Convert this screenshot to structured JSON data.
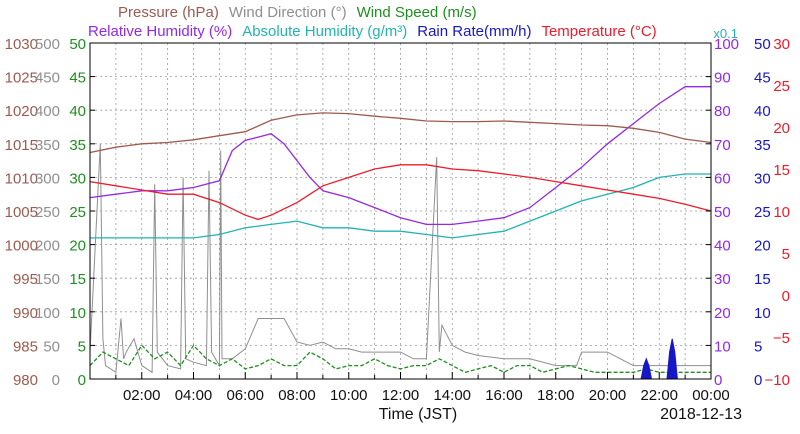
{
  "chart_data": {
    "type": "line",
    "legend": {
      "row1": [
        {
          "text": "Pressure (hPa)",
          "color": "#9d5a4f"
        },
        {
          "text": "Wind Direction (°)",
          "color": "#8f8f8f"
        },
        {
          "text": "Wind Speed (m/s)",
          "color": "#1f8f1f"
        }
      ],
      "row2": [
        {
          "text": "Relative Humidity (%)",
          "color": "#9428e8"
        },
        {
          "text": "Absolute Humidity (g/m³)",
          "color": "#22b3b3"
        },
        {
          "text": "Rain Rate(mm/h)",
          "color": "#1717c8"
        },
        {
          "text": "Temperature (°C)",
          "color": "#ee1c2a"
        }
      ],
      "absolute_humidity_scale": "x0.1"
    },
    "xlabel": "Time (JST)",
    "date_label": "2018-12-13",
    "x_ticks": [
      "02:00",
      "04:00",
      "06:00",
      "08:00",
      "10:00",
      "12:00",
      "14:00",
      "16:00",
      "18:00",
      "20:00",
      "22:00",
      "00:00"
    ],
    "xlim": [
      0,
      24
    ],
    "axes": {
      "pressure": {
        "ticks": [
          "1030",
          "1025",
          "1020",
          "1015",
          "1010",
          "1005",
          "1000",
          "995",
          "990",
          "985",
          "980"
        ],
        "range": [
          980,
          1030
        ],
        "color": "#9d5a4f"
      },
      "wind_direction": {
        "ticks": [
          "500",
          "450",
          "400",
          "350",
          "300",
          "250",
          "200",
          "150",
          "100",
          "50",
          "0"
        ],
        "range": [
          0,
          500
        ],
        "color": "#8f8f8f"
      },
      "wind_speed": {
        "ticks": [
          "50",
          "45",
          "40",
          "35",
          "30",
          "25",
          "20",
          "15",
          "10",
          "5",
          "0"
        ],
        "range": [
          0,
          50
        ],
        "color": "#1f8f1f"
      },
      "relative_humidity": {
        "ticks": [
          "100",
          "90",
          "80",
          "70",
          "60",
          "50",
          "40",
          "30",
          "20",
          "10",
          "0"
        ],
        "range": [
          0,
          100
        ],
        "color": "#9428e8"
      },
      "rain_rate": {
        "ticks": [
          "50",
          "45",
          "40",
          "35",
          "30",
          "25",
          "20",
          "15",
          "10",
          "5",
          "0"
        ],
        "range": [
          0,
          50
        ],
        "color": "#1717c8"
      },
      "temperature": {
        "ticks": [
          "30",
          "25",
          "20",
          "15",
          "10",
          "5",
          "0",
          "−5",
          "−10"
        ],
        "range": [
          -10,
          30
        ],
        "color": "#ee1c2a"
      }
    },
    "series": [
      {
        "name": "Pressure (hPa)",
        "axis": "pressure",
        "color": "#9d5a4f",
        "x": [
          0,
          1,
          2,
          3,
          4,
          5,
          6,
          7,
          8,
          9,
          10,
          11,
          12,
          13,
          14,
          15,
          16,
          17,
          18,
          19,
          20,
          21,
          22,
          23,
          24
        ],
        "y": [
          1013.7,
          1014.5,
          1015,
          1015.2,
          1015.6,
          1016.2,
          1016.8,
          1018.5,
          1019.3,
          1019.6,
          1019.5,
          1019.1,
          1018.8,
          1018.4,
          1018.3,
          1018.3,
          1018.4,
          1018.2,
          1018,
          1017.8,
          1017.7,
          1017.3,
          1016.7,
          1015.7,
          1015.2
        ]
      },
      {
        "name": "Relative Humidity (%)",
        "axis": "relative_humidity",
        "color": "#9428e8",
        "x": [
          0,
          1,
          2,
          3,
          4,
          4.5,
          5,
          5.5,
          6,
          6.5,
          7,
          7.5,
          8,
          8.5,
          9,
          10,
          11,
          12,
          13,
          14,
          15,
          16,
          17,
          18,
          19,
          20,
          21,
          22,
          23,
          24
        ],
        "y": [
          54,
          55,
          56,
          56,
          57,
          58,
          59,
          68,
          71,
          72,
          73,
          70,
          65,
          60,
          56,
          54,
          51,
          48,
          46,
          46,
          47,
          48,
          51,
          57,
          63,
          70,
          76,
          82,
          87,
          87
        ]
      },
      {
        "name": "Absolute Humidity (g/m³)",
        "axis": "relative_humidity",
        "color": "#22b3b3",
        "x": [
          0,
          1,
          2,
          3,
          4,
          5,
          6,
          7,
          8,
          9,
          10,
          11,
          12,
          13,
          14,
          15,
          16,
          17,
          18,
          19,
          20,
          21,
          22,
          23,
          24
        ],
        "y": [
          42,
          42,
          42,
          42,
          42,
          43,
          45,
          46,
          47,
          45,
          45,
          44,
          44,
          43,
          42,
          43,
          44,
          47,
          50,
          53,
          55,
          57,
          60,
          61,
          61
        ]
      },
      {
        "name": "Temperature (°C)",
        "axis": "temperature",
        "color": "#ee1c2a",
        "x": [
          0,
          1,
          2,
          3,
          4,
          5,
          6,
          6.5,
          7,
          8,
          9,
          10,
          11,
          12,
          13,
          14,
          15,
          16,
          17,
          18,
          19,
          20,
          21,
          22,
          23,
          24
        ],
        "y": [
          13.5,
          13,
          12.5,
          12,
          12,
          11,
          9.5,
          9,
          9.5,
          11,
          13,
          14,
          15,
          15.5,
          15.5,
          15,
          14.8,
          14.4,
          14,
          13.5,
          13,
          12.5,
          12,
          11.5,
          10.8,
          10
        ]
      },
      {
        "name": "Wind Direction (°)",
        "axis": "wind_direction",
        "color": "#8f8f8f",
        "x": [
          0,
          0.4,
          0.5,
          0.6,
          1,
          1.2,
          1.3,
          1.4,
          1.7,
          2,
          2.4,
          2.5,
          2.6,
          3,
          3.5,
          3.6,
          3.7,
          4,
          4.5,
          4.6,
          4.7,
          5,
          5.05,
          5.1,
          5.5,
          6,
          6.5,
          6.8,
          7,
          7.5,
          8,
          8.5,
          9,
          9.5,
          10,
          10.5,
          11,
          11.5,
          12,
          12.5,
          13,
          13.4,
          13.5,
          13.6,
          14,
          14.5,
          15,
          16,
          17,
          18,
          18.8,
          19,
          20,
          21,
          22,
          23,
          24
        ],
        "y": [
          40,
          350,
          60,
          20,
          10,
          90,
          30,
          40,
          60,
          20,
          10,
          290,
          40,
          20,
          15,
          300,
          30,
          25,
          20,
          310,
          40,
          20,
          340,
          30,
          30,
          45,
          90,
          90,
          90,
          90,
          55,
          50,
          55,
          45,
          45,
          40,
          40,
          40,
          40,
          30,
          30,
          330,
          40,
          80,
          50,
          40,
          35,
          30,
          30,
          20,
          20,
          40,
          40,
          20,
          20,
          20,
          20
        ]
      },
      {
        "name": "Wind Speed (m/s)",
        "axis": "wind_speed",
        "color": "#1f8f1f",
        "x": [
          0,
          0.5,
          1,
          1.5,
          2,
          2.5,
          3,
          3.5,
          4,
          4.5,
          5,
          5.5,
          6,
          6.5,
          7,
          7.5,
          8,
          8.5,
          9,
          9.5,
          10,
          10.5,
          11,
          11.5,
          12,
          12.5,
          13,
          13.5,
          14,
          14.5,
          15,
          15.5,
          16,
          16.5,
          17,
          17.5,
          18,
          18.5,
          19,
          19.5,
          20,
          20.5,
          21,
          21.5,
          22,
          22.5,
          23,
          23.5,
          24
        ],
        "y": [
          2,
          4,
          3,
          2,
          5,
          3,
          4,
          2,
          5,
          3,
          2,
          3,
          1.5,
          2,
          3,
          2,
          2,
          4,
          3,
          1.5,
          2,
          2,
          3,
          2,
          1.5,
          2,
          2,
          3,
          2,
          1,
          1.5,
          2,
          1,
          2,
          2,
          1,
          1.5,
          2,
          1.5,
          1,
          1,
          1,
          1,
          1.5,
          1,
          1,
          1,
          1,
          1
        ]
      },
      {
        "name": "Rain Rate(mm/h)",
        "axis": "rain_rate",
        "color": "#1717c8",
        "x": [
          21.3,
          21.4,
          21.5,
          21.6,
          21.7,
          22.3,
          22.4,
          22.5,
          22.6,
          22.7
        ],
        "y": [
          0,
          2,
          3,
          2,
          0,
          0,
          4,
          6,
          4,
          0
        ]
      }
    ]
  }
}
